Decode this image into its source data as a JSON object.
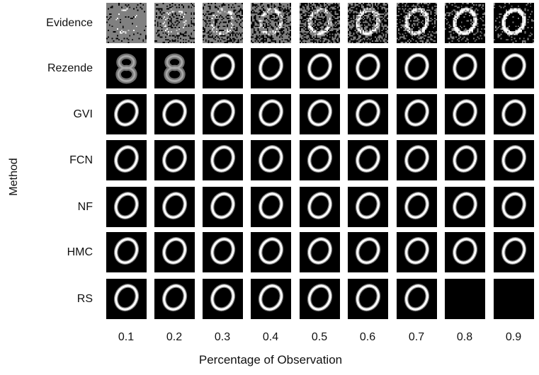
{
  "figure": {
    "y_axis_title": "Method",
    "x_axis_title": "Percentage of Observation",
    "observation_levels": [
      "0.1",
      "0.2",
      "0.3",
      "0.4",
      "0.5",
      "0.6",
      "0.7",
      "0.8",
      "0.9"
    ],
    "rows": [
      {
        "label": "Evidence",
        "kind": "evidence",
        "observed_fraction": [
          0.1,
          0.2,
          0.3,
          0.4,
          0.5,
          0.6,
          0.7,
          0.8,
          0.9
        ]
      },
      {
        "label": "Rezende",
        "kind": "reconstruction",
        "shapes": [
          "eight-blurry",
          "eight-blurry",
          "zero",
          "zero",
          "zero",
          "zero",
          "zero",
          "zero",
          "zero"
        ]
      },
      {
        "label": "GVI",
        "kind": "reconstruction",
        "shapes": [
          "zero",
          "zero",
          "zero",
          "zero",
          "zero",
          "zero",
          "zero",
          "zero",
          "zero"
        ]
      },
      {
        "label": "FCN",
        "kind": "reconstruction",
        "shapes": [
          "zero",
          "zero",
          "zero",
          "zero",
          "zero",
          "zero",
          "zero",
          "zero",
          "zero"
        ]
      },
      {
        "label": "NF",
        "kind": "reconstruction",
        "shapes": [
          "zero",
          "zero",
          "zero",
          "zero",
          "zero",
          "zero",
          "zero",
          "zero",
          "zero"
        ]
      },
      {
        "label": "HMC",
        "kind": "reconstruction",
        "shapes": [
          "zero",
          "zero",
          "zero",
          "zero",
          "zero",
          "zero",
          "zero",
          "zero",
          "zero"
        ]
      },
      {
        "label": "RS",
        "kind": "reconstruction",
        "shapes": [
          "zero",
          "zero",
          "zero",
          "zero",
          "zero",
          "zero",
          "zero",
          "blank",
          "blank"
        ]
      }
    ],
    "colors": {
      "image_background": "#000000",
      "evidence_background": "#808080",
      "stroke": "#ffffff"
    }
  }
}
